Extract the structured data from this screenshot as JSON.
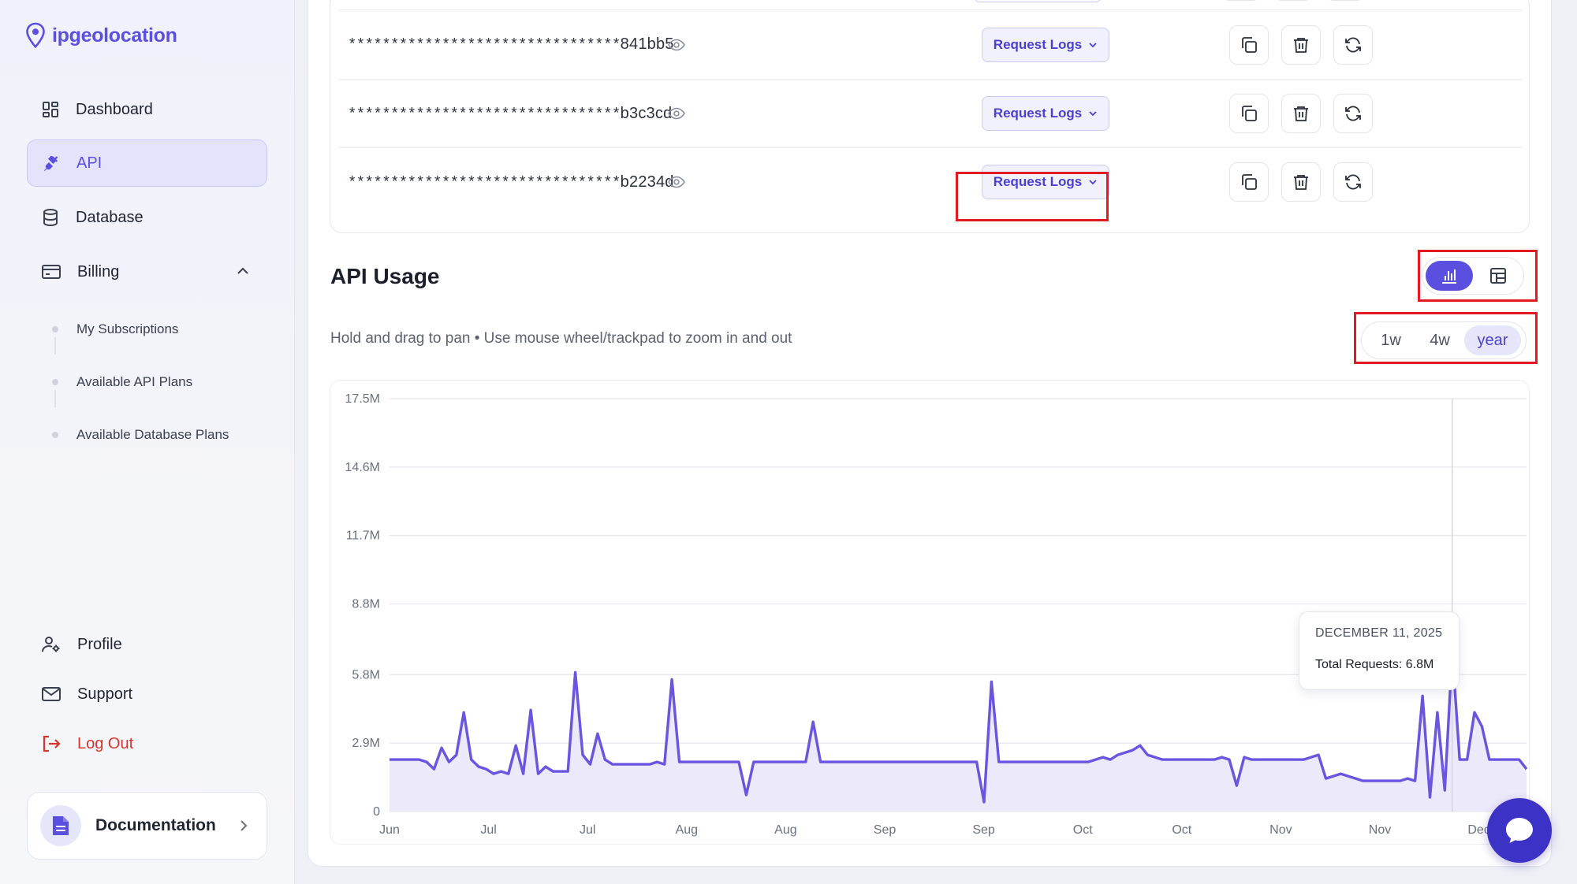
{
  "app": {
    "name": "ipgeolocation",
    "brand_color": "#5b4fe0"
  },
  "sidebar": {
    "items": [
      {
        "label": "Dashboard",
        "icon": "dashboard-grid-icon"
      },
      {
        "label": "API",
        "icon": "plug-icon",
        "active": true
      },
      {
        "label": "Database",
        "icon": "database-icon"
      },
      {
        "label": "Billing",
        "icon": "credit-card-icon",
        "expanded": true
      }
    ],
    "billing_sub": [
      "My Subscriptions",
      "Available API Plans",
      "Available Database Plans"
    ],
    "bottom": [
      {
        "label": "Profile",
        "icon": "user-gear-icon"
      },
      {
        "label": "Support",
        "icon": "envelope-icon"
      },
      {
        "label": "Log Out",
        "icon": "logout-icon"
      }
    ],
    "documentation": "Documentation"
  },
  "keys": {
    "rows": [
      {
        "masked": "********************************",
        "suffix": "841bb5"
      },
      {
        "masked": "********************************",
        "suffix": "b3c3cd"
      },
      {
        "masked": "********************************",
        "suffix": "b2234d"
      }
    ],
    "request_logs_label": "Request Logs"
  },
  "usage": {
    "title": "API Usage",
    "hint": "Hold and drag to pan • Use mouse wheel/trackpad to zoom in and out",
    "ranges": [
      "1w",
      "4w",
      "year"
    ],
    "selected_range": "year",
    "view": "chart",
    "tooltip": {
      "date": "DECEMBER 11, 2025",
      "value": "Total Requests: 6.8M"
    }
  },
  "chart_data": {
    "type": "area",
    "title": "",
    "ylabel": "",
    "xlabel": "",
    "y_ticks": [
      "0",
      "2.9M",
      "5.8M",
      "8.8M",
      "11.7M",
      "14.6M",
      "17.5M"
    ],
    "ylim": [
      0,
      17.5
    ],
    "x_ticks": [
      "Jun",
      "Jul",
      "Jul",
      "Aug",
      "Aug",
      "Sep",
      "Sep",
      "Oct",
      "Oct",
      "Nov",
      "Nov",
      "Dec"
    ],
    "series": [
      {
        "color": "#6a55e0",
        "values": [
          2.2,
          2.2,
          2.2,
          2.2,
          2.2,
          2.1,
          1.8,
          2.7,
          2.1,
          2.4,
          4.2,
          2.2,
          1.9,
          1.8,
          1.6,
          1.7,
          1.6,
          2.8,
          1.6,
          4.3,
          1.6,
          1.9,
          1.7,
          1.7,
          1.7,
          5.9,
          2.4,
          2.0,
          3.3,
          2.2,
          2.0,
          2.0,
          2.0,
          2.0,
          2.0,
          2.0,
          2.1,
          2.0,
          5.6,
          2.1,
          2.1,
          2.1,
          2.1,
          2.1,
          2.1,
          2.1,
          2.1,
          2.1,
          0.7,
          2.1,
          2.1,
          2.1,
          2.1,
          2.1,
          2.1,
          2.1,
          2.1,
          3.8,
          2.1,
          2.1,
          2.1,
          2.1,
          2.1,
          2.1,
          2.1,
          2.1,
          2.1,
          2.1,
          2.1,
          2.1,
          2.1,
          2.1,
          2.1,
          2.1,
          2.1,
          2.1,
          2.1,
          2.1,
          2.1,
          2.1,
          0.4,
          5.5,
          2.1,
          2.1,
          2.1,
          2.1,
          2.1,
          2.1,
          2.1,
          2.1,
          2.1,
          2.1,
          2.1,
          2.1,
          2.1,
          2.2,
          2.3,
          2.2,
          2.4,
          2.5,
          2.6,
          2.8,
          2.4,
          2.3,
          2.2,
          2.2,
          2.2,
          2.2,
          2.2,
          2.2,
          2.2,
          2.2,
          2.3,
          2.2,
          1.1,
          2.3,
          2.2,
          2.2,
          2.2,
          2.2,
          2.2,
          2.2,
          2.2,
          2.2,
          2.3,
          2.4,
          1.4,
          1.5,
          1.6,
          1.5,
          1.4,
          1.3,
          1.3,
          1.3,
          1.3,
          1.3,
          1.3,
          1.4,
          1.3,
          4.9,
          0.6,
          4.2,
          0.9,
          6.8,
          2.2,
          2.2,
          4.2,
          3.6,
          2.2,
          2.2,
          2.2,
          2.2,
          2.2,
          1.8
        ]
      }
    ],
    "grid": true,
    "hover_date": "December 11, 2025",
    "hover_value": 6.8
  }
}
